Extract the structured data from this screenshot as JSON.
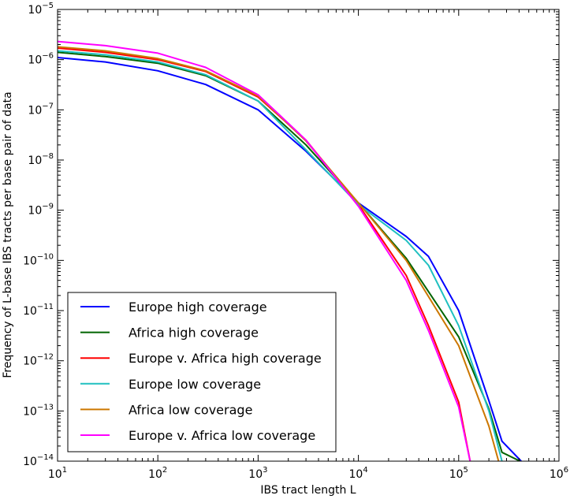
{
  "chart_data": {
    "type": "line",
    "title": "",
    "xlabel": "IBS tract length L",
    "ylabel": "Frequency of L-base IBS tracts per base pair of data",
    "xscale": "log",
    "yscale": "log",
    "xlim": [
      10,
      1000000
    ],
    "ylim": [
      1e-14,
      1e-05
    ],
    "x_ticks": [
      {
        "base": "10",
        "exp": "1",
        "value": 10
      },
      {
        "base": "10",
        "exp": "2",
        "value": 100
      },
      {
        "base": "10",
        "exp": "3",
        "value": 1000
      },
      {
        "base": "10",
        "exp": "4",
        "value": 10000
      },
      {
        "base": "10",
        "exp": "5",
        "value": 100000
      },
      {
        "base": "10",
        "exp": "6",
        "value": 1000000
      }
    ],
    "y_ticks": [
      {
        "base": "10",
        "exp": "−14",
        "value": 1e-14
      },
      {
        "base": "10",
        "exp": "−13",
        "value": 1e-13
      },
      {
        "base": "10",
        "exp": "−12",
        "value": 1e-12
      },
      {
        "base": "10",
        "exp": "−11",
        "value": 1e-11
      },
      {
        "base": "10",
        "exp": "−10",
        "value": 1e-10
      },
      {
        "base": "10",
        "exp": "−9",
        "value": 1e-09
      },
      {
        "base": "10",
        "exp": "−8",
        "value": 1e-08
      },
      {
        "base": "10",
        "exp": "−7",
        "value": 1e-07
      },
      {
        "base": "10",
        "exp": "−6",
        "value": 1e-06
      },
      {
        "base": "10",
        "exp": "−5",
        "value": 1e-05
      }
    ],
    "grid": false,
    "legend_position": "bottom-left",
    "series": [
      {
        "name": "Europe high coverage",
        "color": "#0000ff",
        "x": [
          10,
          30,
          100,
          300,
          1000,
          3000,
          10000,
          30000,
          50000,
          100000,
          200000,
          270000,
          420000
        ],
        "y": [
          1.1e-06,
          9e-07,
          6e-07,
          3.2e-07,
          1e-07,
          1.5e-08,
          1.4e-09,
          3e-10,
          1.2e-10,
          1e-11,
          1.6e-13,
          2.5e-14,
          1e-14
        ]
      },
      {
        "name": "Africa high coverage",
        "color": "#006400",
        "x": [
          10,
          30,
          100,
          300,
          1000,
          3000,
          10000,
          30000,
          100000,
          200000,
          270000,
          410000
        ],
        "y": [
          1.4e-06,
          1.15e-06,
          8.5e-07,
          4.8e-07,
          1.5e-07,
          2e-08,
          1.4e-09,
          1.1e-10,
          3e-12,
          1.1e-13,
          1.5e-14,
          1e-14
        ]
      },
      {
        "name": "Europe v. Africa high coverage",
        "color": "#ff0000",
        "x": [
          10,
          30,
          100,
          300,
          1000,
          3000,
          10000,
          30000,
          50000,
          100000,
          130000
        ],
        "y": [
          1.7e-06,
          1.4e-06,
          1e-06,
          5.8e-07,
          1.8e-07,
          2.5e-08,
          1.3e-09,
          5e-11,
          5e-12,
          1.5e-13,
          1e-14
        ]
      },
      {
        "name": "Europe low coverage",
        "color": "#20c0c0",
        "x": [
          10,
          30,
          100,
          300,
          1000,
          3000,
          10000,
          30000,
          50000,
          100000,
          200000,
          270000
        ],
        "y": [
          1.5e-06,
          1.25e-06,
          9e-07,
          5e-07,
          1.5e-07,
          1.6e-08,
          1.3e-09,
          2.5e-10,
          8e-11,
          5e-12,
          1e-13,
          1e-14
        ]
      },
      {
        "name": "Africa low coverage",
        "color": "#cc7700",
        "x": [
          10,
          30,
          100,
          300,
          1000,
          3000,
          10000,
          30000,
          100000,
          200000,
          250000
        ],
        "y": [
          1.8e-06,
          1.5e-06,
          1.05e-06,
          6e-07,
          1.9e-07,
          2.4e-08,
          1.4e-09,
          1e-10,
          2e-12,
          5e-14,
          1e-14
        ]
      },
      {
        "name": "Europe v. Africa low coverage",
        "color": "#ff00ff",
        "x": [
          10,
          30,
          100,
          300,
          1000,
          3000,
          10000,
          30000,
          50000,
          100000,
          130000
        ],
        "y": [
          2.3e-06,
          1.9e-06,
          1.35e-06,
          7e-07,
          2e-07,
          2.5e-08,
          1.2e-09,
          4e-11,
          4e-12,
          1.2e-13,
          1e-14
        ]
      }
    ]
  }
}
